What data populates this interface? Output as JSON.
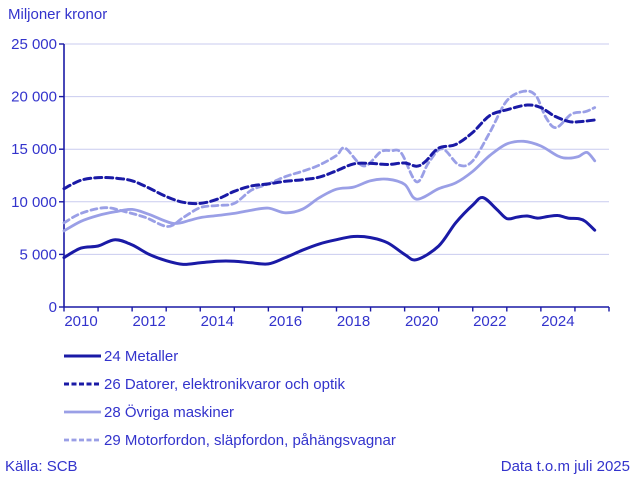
{
  "chart": {
    "title": "Miljoner kronor"
  },
  "footer": {
    "source": "Källa: SCB",
    "data_through": "Data t.o.m juli 2025"
  },
  "chart_data": {
    "type": "line",
    "title": "Miljoner kronor",
    "x_range": [
      2010,
      2026
    ],
    "x_data_end": 2025.58,
    "ylim": [
      0,
      25000
    ],
    "y_ticks": [
      0,
      5000,
      10000,
      15000,
      20000,
      25000
    ],
    "y_tick_labels": [
      "0",
      "5 000",
      "10 000",
      "15 000",
      "20 000",
      "25 000"
    ],
    "x_tick_years": [
      2010,
      2011,
      2012,
      2013,
      2014,
      2015,
      2016,
      2017,
      2018,
      2019,
      2020,
      2021,
      2022,
      2023,
      2024,
      2025,
      2026
    ],
    "x_labels": [
      "2010",
      "2012",
      "2014",
      "2016",
      "2018",
      "2020",
      "2022",
      "2024"
    ],
    "grid": true,
    "legend_position": "bottom",
    "colors": {
      "dark_line": "#1a1aa6",
      "light_line": "#9a9fe6",
      "text": "#3333cc",
      "grid": "#c9cbef"
    },
    "series": [
      {
        "name": "24 Metaller",
        "color": "#1a1aa6",
        "dash": null,
        "width": 3,
        "points": [
          [
            2010.0,
            4700
          ],
          [
            2010.5,
            5600
          ],
          [
            2011.0,
            5800
          ],
          [
            2011.5,
            6400
          ],
          [
            2012.0,
            5900
          ],
          [
            2012.5,
            5000
          ],
          [
            2013.0,
            4400
          ],
          [
            2013.5,
            4050
          ],
          [
            2014.0,
            4200
          ],
          [
            2014.5,
            4350
          ],
          [
            2015.0,
            4350
          ],
          [
            2015.5,
            4200
          ],
          [
            2016.0,
            4100
          ],
          [
            2016.5,
            4700
          ],
          [
            2017.0,
            5400
          ],
          [
            2017.5,
            6000
          ],
          [
            2018.0,
            6400
          ],
          [
            2018.5,
            6700
          ],
          [
            2019.0,
            6600
          ],
          [
            2019.5,
            6100
          ],
          [
            2020.0,
            5000
          ],
          [
            2020.35,
            4500
          ],
          [
            2021.0,
            5800
          ],
          [
            2021.5,
            8000
          ],
          [
            2022.0,
            9700
          ],
          [
            2022.3,
            10400
          ],
          [
            2022.7,
            9300
          ],
          [
            2023.0,
            8400
          ],
          [
            2023.3,
            8550
          ],
          [
            2023.6,
            8650
          ],
          [
            2023.9,
            8450
          ],
          [
            2024.2,
            8600
          ],
          [
            2024.5,
            8700
          ],
          [
            2024.8,
            8450
          ],
          [
            2025.1,
            8400
          ],
          [
            2025.3,
            8150
          ],
          [
            2025.58,
            7300
          ]
        ]
      },
      {
        "name": "26 Datorer, elektronikvaror och optik",
        "color": "#1a1aa6",
        "dash": "7 4",
        "width": 3,
        "points": [
          [
            2010.0,
            11250
          ],
          [
            2010.5,
            12050
          ],
          [
            2011.0,
            12300
          ],
          [
            2011.5,
            12250
          ],
          [
            2012.0,
            12000
          ],
          [
            2012.5,
            11300
          ],
          [
            2013.0,
            10500
          ],
          [
            2013.5,
            9950
          ],
          [
            2014.0,
            9850
          ],
          [
            2014.5,
            10250
          ],
          [
            2015.0,
            11000
          ],
          [
            2015.5,
            11500
          ],
          [
            2016.0,
            11700
          ],
          [
            2016.5,
            11950
          ],
          [
            2017.0,
            12100
          ],
          [
            2017.5,
            12350
          ],
          [
            2018.0,
            12950
          ],
          [
            2018.5,
            13600
          ],
          [
            2019.0,
            13650
          ],
          [
            2019.5,
            13550
          ],
          [
            2020.0,
            13690
          ],
          [
            2020.35,
            13380
          ],
          [
            2020.6,
            13800
          ],
          [
            2021.0,
            15100
          ],
          [
            2021.5,
            15450
          ],
          [
            2022.0,
            16600
          ],
          [
            2022.5,
            18200
          ],
          [
            2023.0,
            18750
          ],
          [
            2023.6,
            19200
          ],
          [
            2024.0,
            18950
          ],
          [
            2024.4,
            18150
          ],
          [
            2024.8,
            17650
          ],
          [
            2025.1,
            17600
          ],
          [
            2025.58,
            17780
          ]
        ]
      },
      {
        "name": "28 Övriga maskiner",
        "color": "#9a9fe6",
        "dash": null,
        "width": 2.8,
        "points": [
          [
            2010.0,
            7230
          ],
          [
            2010.5,
            8150
          ],
          [
            2011.0,
            8700
          ],
          [
            2011.5,
            9050
          ],
          [
            2012.0,
            9280
          ],
          [
            2012.5,
            8800
          ],
          [
            2013.2,
            7950
          ],
          [
            2013.7,
            8250
          ],
          [
            2014.0,
            8500
          ],
          [
            2014.5,
            8700
          ],
          [
            2015.0,
            8900
          ],
          [
            2015.5,
            9200
          ],
          [
            2016.0,
            9400
          ],
          [
            2016.5,
            8950
          ],
          [
            2017.0,
            9300
          ],
          [
            2017.5,
            10400
          ],
          [
            2018.0,
            11200
          ],
          [
            2018.5,
            11400
          ],
          [
            2019.0,
            12000
          ],
          [
            2019.5,
            12150
          ],
          [
            2020.0,
            11650
          ],
          [
            2020.35,
            10250
          ],
          [
            2021.0,
            11250
          ],
          [
            2021.5,
            11800
          ],
          [
            2022.0,
            12900
          ],
          [
            2022.5,
            14400
          ],
          [
            2023.0,
            15500
          ],
          [
            2023.5,
            15750
          ],
          [
            2024.0,
            15300
          ],
          [
            2024.5,
            14350
          ],
          [
            2024.8,
            14150
          ],
          [
            2025.1,
            14300
          ],
          [
            2025.35,
            14700
          ],
          [
            2025.58,
            13900
          ]
        ]
      },
      {
        "name": "29 Motorfordon, släpfordon, påhängsvagnar",
        "color": "#9a9fe6",
        "dash": "6 4",
        "width": 2.8,
        "points": [
          [
            2010.0,
            8000
          ],
          [
            2010.5,
            8900
          ],
          [
            2011.2,
            9440
          ],
          [
            2011.8,
            9050
          ],
          [
            2012.4,
            8500
          ],
          [
            2013.05,
            7650
          ],
          [
            2013.5,
            8500
          ],
          [
            2014.0,
            9450
          ],
          [
            2014.5,
            9650
          ],
          [
            2015.0,
            9850
          ],
          [
            2015.5,
            11100
          ],
          [
            2016.0,
            11700
          ],
          [
            2016.5,
            12400
          ],
          [
            2017.0,
            12900
          ],
          [
            2017.5,
            13500
          ],
          [
            2018.0,
            14400
          ],
          [
            2018.25,
            15100
          ],
          [
            2018.8,
            13400
          ],
          [
            2019.3,
            14750
          ],
          [
            2019.6,
            14850
          ],
          [
            2019.9,
            14650
          ],
          [
            2020.35,
            11900
          ],
          [
            2020.7,
            13700
          ],
          [
            2021.1,
            15040
          ],
          [
            2021.6,
            13500
          ],
          [
            2022.0,
            13900
          ],
          [
            2022.5,
            16600
          ],
          [
            2023.0,
            19600
          ],
          [
            2023.5,
            20500
          ],
          [
            2023.85,
            20100
          ],
          [
            2024.15,
            18000
          ],
          [
            2024.45,
            17050
          ],
          [
            2024.9,
            18340
          ],
          [
            2025.3,
            18560
          ],
          [
            2025.58,
            18950
          ]
        ]
      }
    ]
  }
}
